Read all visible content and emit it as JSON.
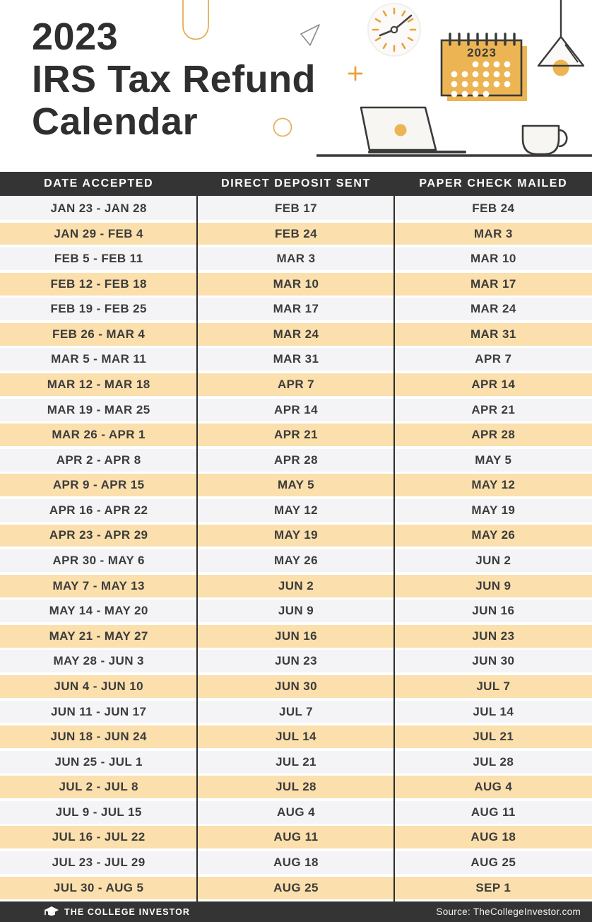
{
  "colors": {
    "accent_orange": "#ECB452",
    "row_orange": "#FBDFAC",
    "row_gray": "#F4F3F5",
    "bar_dark": "#343434",
    "title_text": "#2F2F2F",
    "cell_text": "#3C3C3C",
    "tick_orange": "#E9A23B",
    "outline_dark": "#3A3A3A"
  },
  "header": {
    "title_lines": [
      "2023",
      "IRS Tax Refund",
      "Calendar"
    ],
    "calendar_year": "2023"
  },
  "chart_data": {
    "type": "table",
    "title": "2023 IRS Tax Refund Calendar",
    "columns": [
      "DATE ACCEPTED",
      "DIRECT DEPOSIT SENT",
      "PAPER CHECK MAILED"
    ],
    "rows": [
      [
        "JAN 23 - JAN 28",
        "FEB 17",
        "FEB 24"
      ],
      [
        "JAN 29 - FEB 4",
        "FEB 24",
        "MAR 3"
      ],
      [
        "FEB 5 - FEB 11",
        "MAR 3",
        "MAR 10"
      ],
      [
        "FEB 12 - FEB 18",
        "MAR 10",
        "MAR 17"
      ],
      [
        "FEB 19 - FEB 25",
        "MAR 17",
        "MAR 24"
      ],
      [
        "FEB 26 - MAR 4",
        "MAR 24",
        "MAR 31"
      ],
      [
        "MAR 5 - MAR 11",
        "MAR 31",
        "APR 7"
      ],
      [
        "MAR 12 - MAR 18",
        "APR 7",
        "APR 14"
      ],
      [
        "MAR 19 - MAR 25",
        "APR 14",
        "APR 21"
      ],
      [
        "MAR 26 - APR 1",
        "APR 21",
        "APR 28"
      ],
      [
        "APR 2 - APR 8",
        "APR 28",
        "MAY 5"
      ],
      [
        "APR 9 - APR 15",
        "MAY 5",
        "MAY 12"
      ],
      [
        "APR 16 - APR 22",
        "MAY 12",
        "MAY 19"
      ],
      [
        "APR 23 - APR 29",
        "MAY 19",
        "MAY 26"
      ],
      [
        "APR 30 - MAY 6",
        "MAY 26",
        "JUN 2"
      ],
      [
        "MAY 7 - MAY 13",
        "JUN 2",
        "JUN 9"
      ],
      [
        "MAY 14 - MAY 20",
        "JUN 9",
        "JUN 16"
      ],
      [
        "MAY 21 - MAY 27",
        "JUN 16",
        "JUN 23"
      ],
      [
        "MAY 28 - JUN 3",
        "JUN 23",
        "JUN 30"
      ],
      [
        "JUN 4 - JUN 10",
        "JUN 30",
        "JUL 7"
      ],
      [
        "JUN 11 - JUN 17",
        "JUL 7",
        "JUL 14"
      ],
      [
        "JUN 18 - JUN 24",
        "JUL 14",
        "JUL 21"
      ],
      [
        "JUN 25 - JUL 1",
        "JUL 21",
        "JUL 28"
      ],
      [
        "JUL 2 - JUL 8",
        "JUL 28",
        "AUG 4"
      ],
      [
        "JUL 9 - JUL 15",
        "AUG 4",
        "AUG 11"
      ],
      [
        "JUL 16 - JUL 22",
        "AUG 11",
        "AUG 18"
      ],
      [
        "JUL 23 - JUL 29",
        "AUG 18",
        "AUG 25"
      ],
      [
        "JUL 30 - AUG 5",
        "AUG 25",
        "SEP 1"
      ]
    ]
  },
  "footer": {
    "brand": "THE COLLEGE INVESTOR",
    "source": "Source: TheCollegeInvestor.com"
  }
}
